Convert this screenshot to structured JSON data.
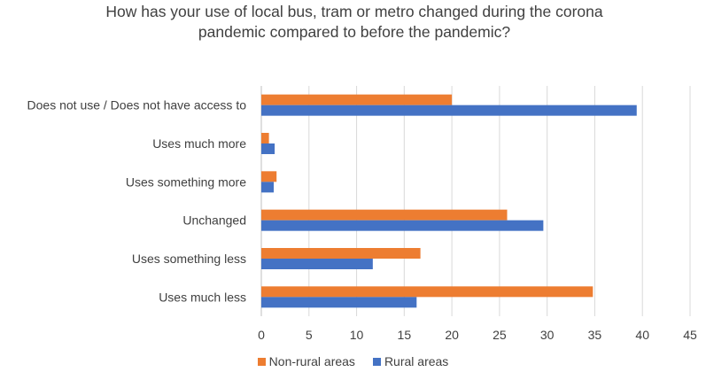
{
  "chart_data": {
    "type": "bar",
    "orientation": "horizontal",
    "title": "How has your use of local bus, tram or metro changed during the corona pandemic compared to before the pandemic?",
    "categories": [
      "Does not use / Does not have access to",
      "Uses much more",
      "Uses something more",
      "Unchanged",
      "Uses something less",
      "Uses much less"
    ],
    "series": [
      {
        "name": "Non-rural areas",
        "color": "#ED7D31",
        "values": [
          20.0,
          0.8,
          1.6,
          25.8,
          16.7,
          34.8
        ]
      },
      {
        "name": "Rural areas",
        "color": "#4472C4",
        "values": [
          39.4,
          1.4,
          1.3,
          29.6,
          11.7,
          16.3
        ]
      }
    ],
    "xlim": [
      0,
      45
    ],
    "xticks": [
      0,
      5,
      10,
      15,
      20,
      25,
      30,
      35,
      40,
      45
    ],
    "grid": true,
    "legend_position": "bottom"
  }
}
